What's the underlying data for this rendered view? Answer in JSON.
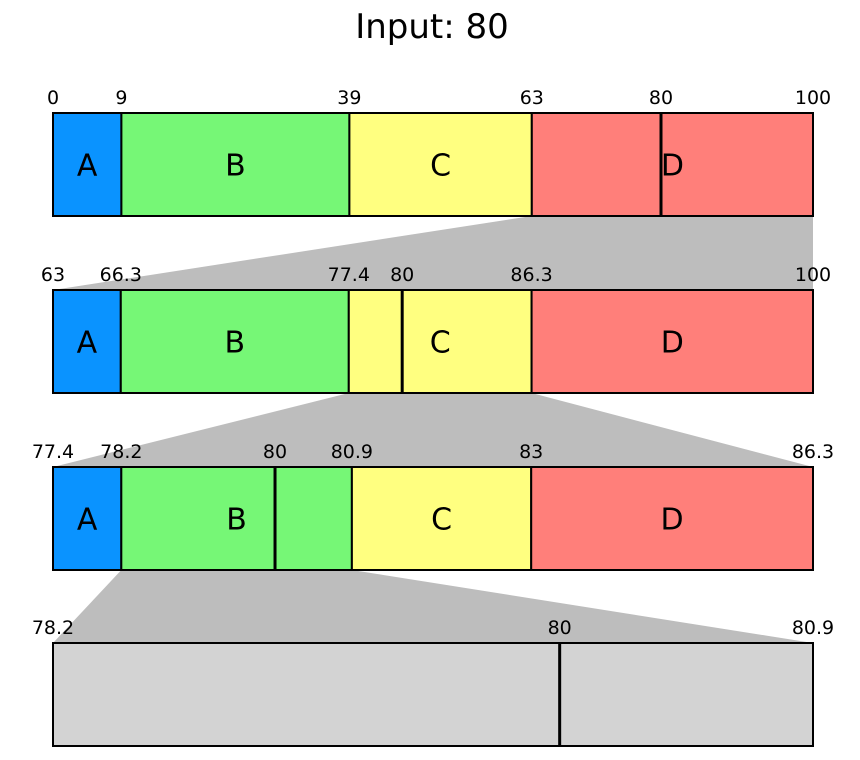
{
  "title": "Input: 80",
  "colors": {
    "A": "#0a93ff",
    "B": "#76f776",
    "C": "#ffff80",
    "D": "#ff7f7a",
    "gray": "#d3d3d3",
    "funnel": "#bdbdbd",
    "stroke": "#000000"
  },
  "input_value": 80,
  "rows": [
    {
      "range": [
        0,
        100
      ],
      "segments": [
        {
          "label": "A",
          "start": 0,
          "end": 9
        },
        {
          "label": "B",
          "start": 9,
          "end": 39
        },
        {
          "label": "C",
          "start": 39,
          "end": 63
        },
        {
          "label": "D",
          "start": 63,
          "end": 100
        }
      ],
      "ticks": [
        {
          "value": 0,
          "label": "0"
        },
        {
          "value": 9,
          "label": "9"
        },
        {
          "value": 39,
          "label": "39"
        },
        {
          "value": 63,
          "label": "63"
        },
        {
          "value": 80,
          "label": "80"
        },
        {
          "value": 100,
          "label": "100"
        }
      ],
      "marker": 80,
      "zoom_segment": "D"
    },
    {
      "range": [
        63,
        100
      ],
      "segments": [
        {
          "label": "A",
          "start": 63,
          "end": 66.3
        },
        {
          "label": "B",
          "start": 66.3,
          "end": 77.4
        },
        {
          "label": "C",
          "start": 77.4,
          "end": 86.3
        },
        {
          "label": "D",
          "start": 86.3,
          "end": 100
        }
      ],
      "ticks": [
        {
          "value": 63,
          "label": "63"
        },
        {
          "value": 66.3,
          "label": "66.3"
        },
        {
          "value": 77.4,
          "label": "77.4"
        },
        {
          "value": 80,
          "label": "80"
        },
        {
          "value": 86.3,
          "label": "86.3"
        },
        {
          "value": 100,
          "label": "100"
        }
      ],
      "marker": 80,
      "zoom_segment": "C"
    },
    {
      "range": [
        77.4,
        86.3
      ],
      "segments": [
        {
          "label": "A",
          "start": 77.4,
          "end": 78.2
        },
        {
          "label": "B",
          "start": 78.2,
          "end": 80.9
        },
        {
          "label": "C",
          "start": 80.9,
          "end": 83
        },
        {
          "label": "D",
          "start": 83,
          "end": 86.3
        }
      ],
      "ticks": [
        {
          "value": 77.4,
          "label": "77.4"
        },
        {
          "value": 78.2,
          "label": "78.2"
        },
        {
          "value": 80,
          "label": "80"
        },
        {
          "value": 80.9,
          "label": "80.9"
        },
        {
          "value": 83,
          "label": "83"
        },
        {
          "value": 86.3,
          "label": "86.3"
        }
      ],
      "marker": 80,
      "zoom_segment": "B"
    },
    {
      "range": [
        78.2,
        80.9
      ],
      "segments": [],
      "ticks": [
        {
          "value": 78.2,
          "label": "78.2"
        },
        {
          "value": 80,
          "label": "80"
        },
        {
          "value": 80.9,
          "label": "80.9"
        }
      ],
      "marker": 80,
      "zoom_segment": null
    }
  ]
}
